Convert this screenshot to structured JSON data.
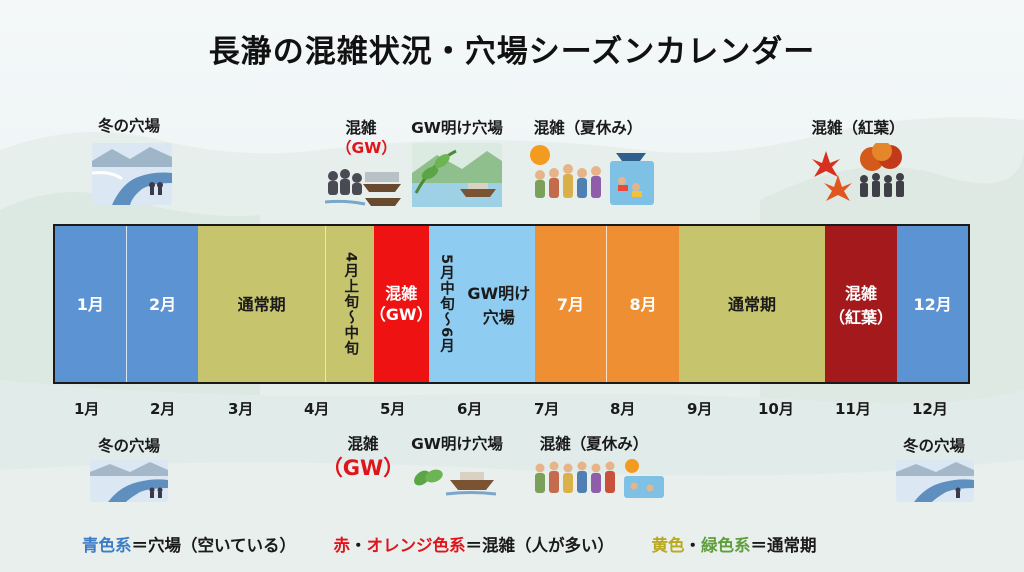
{
  "title": "長瀞の混雑状況・穴場シーズンカレンダー",
  "top_annotations": {
    "winter": "冬の穴場",
    "gw_label": "混雑",
    "gw_sub": "（GW）",
    "after_gw": "GW明け穴場",
    "summer": "混雑（夏休み）",
    "autumn": "混雑（紅葉）"
  },
  "bottom_annotations": {
    "winter_left": "冬の穴場",
    "gw_label": "混雑",
    "gw_sub": "（GW）",
    "after_gw": "GW明け穴場",
    "summer": "混雑（夏休み）",
    "winter_right": "冬の穴場"
  },
  "calendar": {
    "m1": "1月",
    "m2": "2月",
    "normal1": "通常期",
    "early_may": "4月上旬〜中旬",
    "gw1": "混雑",
    "gw2": "（GW）",
    "mid_may": "5月中旬〜6月",
    "after1": "GW明け",
    "after2": "穴場",
    "m7": "7月",
    "m8": "8月",
    "normal2": "通常期",
    "autumn1": "混雑",
    "autumn2": "（紅葉）",
    "m12": "12月"
  },
  "axis_labels": [
    "1月",
    "2月",
    "3月",
    "4月",
    "5月",
    "6月",
    "7月",
    "8月",
    "9月",
    "10月",
    "11月",
    "12月"
  ],
  "legend": {
    "blue": "青色系",
    "blue_eq": "＝穴場（空いている）",
    "red": "赤",
    "dot1": "・",
    "orange": "オレンジ色系",
    "red_eq": "＝混雑（人が多い）",
    "yellow": "黄色",
    "dot2": "・",
    "green": "緑色系",
    "yellow_eq": "＝通常期"
  },
  "colors": {
    "blue": "#5b93d3",
    "light_blue": "#8ecdf1",
    "olive": "#c6c46d",
    "red": "#ee1212",
    "orange": "#ee8f33",
    "dark_red": "#a41a1c",
    "legend_blue": "#3d7cc4",
    "legend_red": "#e0141b",
    "legend_yellow": "#b9a91e"
  }
}
